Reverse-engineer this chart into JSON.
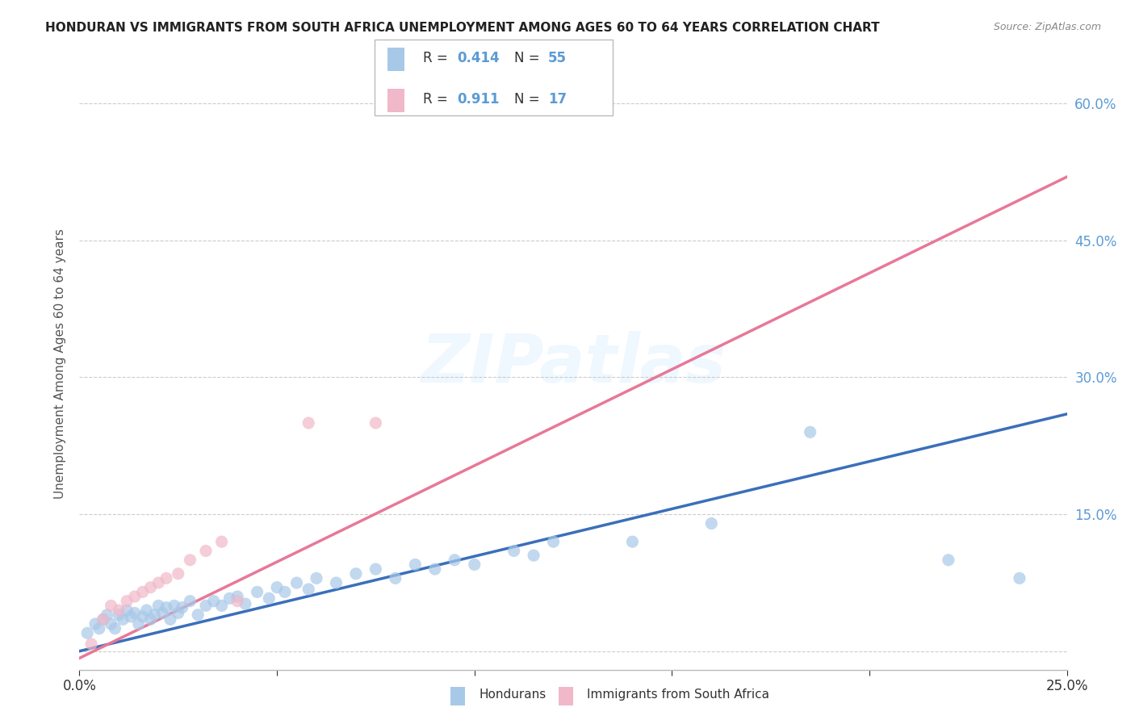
{
  "title": "HONDURAN VS IMMIGRANTS FROM SOUTH AFRICA UNEMPLOYMENT AMONG AGES 60 TO 64 YEARS CORRELATION CHART",
  "source": "Source: ZipAtlas.com",
  "ylabel": "Unemployment Among Ages 60 to 64 years",
  "xlim": [
    0.0,
    0.25
  ],
  "ylim": [
    -0.02,
    0.65
  ],
  "xticks": [
    0.0,
    0.05,
    0.1,
    0.15,
    0.2,
    0.25
  ],
  "xtick_labels": [
    "0.0%",
    "",
    "",
    "",
    "",
    "25.0%"
  ],
  "yticks": [
    0.0,
    0.15,
    0.3,
    0.45,
    0.6
  ],
  "right_ytick_labels": [
    "",
    "15.0%",
    "30.0%",
    "45.0%",
    "60.0%"
  ],
  "watermark": "ZIPatlas",
  "blue_color": "#a8c8e8",
  "pink_color": "#f0b8c8",
  "blue_line_color": "#3a6fba",
  "pink_line_color": "#e87898",
  "hondurans_x": [
    0.002,
    0.004,
    0.005,
    0.006,
    0.007,
    0.008,
    0.009,
    0.01,
    0.011,
    0.012,
    0.013,
    0.014,
    0.015,
    0.016,
    0.017,
    0.018,
    0.019,
    0.02,
    0.021,
    0.022,
    0.023,
    0.024,
    0.025,
    0.026,
    0.028,
    0.03,
    0.032,
    0.034,
    0.036,
    0.038,
    0.04,
    0.042,
    0.045,
    0.048,
    0.05,
    0.052,
    0.055,
    0.058,
    0.06,
    0.065,
    0.07,
    0.075,
    0.08,
    0.085,
    0.09,
    0.095,
    0.1,
    0.11,
    0.115,
    0.12,
    0.14,
    0.16,
    0.185,
    0.22,
    0.238
  ],
  "hondurans_y": [
    0.02,
    0.03,
    0.025,
    0.035,
    0.04,
    0.03,
    0.025,
    0.04,
    0.035,
    0.045,
    0.038,
    0.042,
    0.03,
    0.038,
    0.045,
    0.035,
    0.04,
    0.05,
    0.042,
    0.048,
    0.035,
    0.05,
    0.042,
    0.048,
    0.055,
    0.04,
    0.05,
    0.055,
    0.05,
    0.058,
    0.06,
    0.052,
    0.065,
    0.058,
    0.07,
    0.065,
    0.075,
    0.068,
    0.08,
    0.075,
    0.085,
    0.09,
    0.08,
    0.095,
    0.09,
    0.1,
    0.095,
    0.11,
    0.105,
    0.12,
    0.12,
    0.14,
    0.24,
    0.1,
    0.08
  ],
  "sa_x": [
    0.003,
    0.006,
    0.008,
    0.01,
    0.012,
    0.014,
    0.016,
    0.018,
    0.02,
    0.022,
    0.025,
    0.028,
    0.032,
    0.036,
    0.04,
    0.058,
    0.075
  ],
  "sa_y": [
    0.008,
    0.035,
    0.05,
    0.045,
    0.055,
    0.06,
    0.065,
    0.07,
    0.075,
    0.08,
    0.085,
    0.1,
    0.11,
    0.12,
    0.055,
    0.25,
    0.25
  ],
  "blue_trend_x": [
    -0.005,
    0.255
  ],
  "blue_trend_y": [
    -0.005,
    0.265
  ],
  "pink_trend_x": [
    -0.005,
    0.255
  ],
  "pink_trend_y": [
    -0.018,
    0.53
  ]
}
